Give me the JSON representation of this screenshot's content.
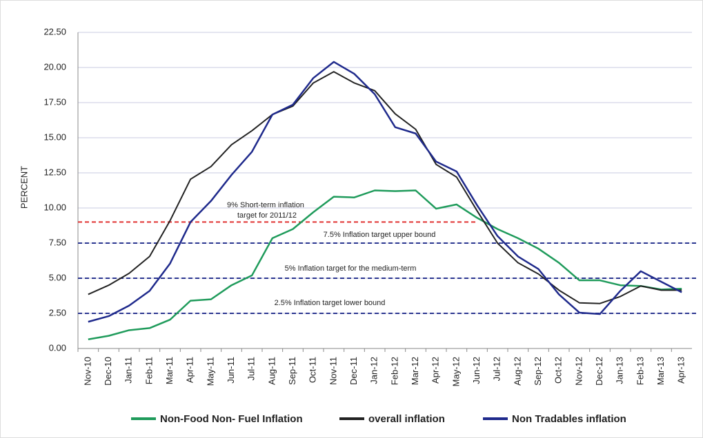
{
  "chart_data": {
    "type": "line",
    "y_label": "PERCENT",
    "categories": [
      "Nov-10",
      "Dec-10",
      "Jan-11",
      "Feb-11",
      "Mar-11",
      "Apr-11",
      "May-11",
      "Jun-11",
      "Jul-11",
      "Aug-11",
      "Sep-11",
      "Oct-11",
      "Nov-11",
      "Dec-11",
      "Jan-12",
      "Feb-12",
      "Mar-12",
      "Apr-12",
      "May-12",
      "Jun-12",
      "Jul-12",
      "Aug-12",
      "Sep-12",
      "Oct-12",
      "Nov-12",
      "Dec-12",
      "Jan-13",
      "Feb-13",
      "Mar-13",
      "Apr-13"
    ],
    "series": [
      {
        "name": "Non-Food Non- Fuel Inflation",
        "color": "#1f9b5b",
        "values": [
          0.65,
          0.9,
          1.3,
          1.45,
          2.05,
          3.4,
          3.5,
          4.5,
          5.2,
          7.85,
          8.5,
          9.7,
          10.8,
          10.75,
          11.25,
          11.2,
          11.25,
          9.95,
          10.25,
          9.3,
          8.5,
          7.85,
          7.1,
          6.1,
          4.85,
          4.85,
          4.5,
          4.45,
          4.2,
          4.25
        ]
      },
      {
        "name": "overall inflation",
        "color": "#222222",
        "values": [
          3.85,
          4.5,
          5.35,
          6.55,
          9.1,
          12.05,
          12.95,
          14.5,
          15.5,
          16.65,
          17.25,
          18.9,
          19.7,
          18.9,
          18.35,
          16.7,
          15.6,
          13.1,
          12.2,
          9.8,
          7.5,
          6.1,
          5.3,
          4.15,
          3.25,
          3.2,
          3.7,
          4.45,
          4.15,
          4.15
        ]
      },
      {
        "name": "Non Tradables inflation",
        "color": "#1f2a8c",
        "values": [
          1.9,
          2.3,
          3.05,
          4.1,
          6.05,
          9.0,
          10.5,
          12.35,
          14.0,
          16.65,
          17.35,
          19.25,
          20.4,
          19.55,
          18.1,
          15.75,
          15.3,
          13.3,
          12.6,
          10.2,
          8.0,
          6.55,
          5.65,
          3.85,
          2.55,
          2.45,
          4.1,
          5.5,
          4.75,
          4.0
        ]
      }
    ],
    "reference_lines": [
      {
        "value": 9,
        "color": "#e0302f",
        "label": [
          "9%  Short-term inflation",
          "target  for 2011/12"
        ]
      },
      {
        "value": 7.5,
        "color": "#2a3590",
        "label": [
          "7.5% Inflation target upper bound"
        ]
      },
      {
        "value": 5,
        "color": "#2a3590",
        "label": [
          "5% Inflation target for the medium-term"
        ]
      },
      {
        "value": 2.5,
        "color": "#2a3590",
        "label": [
          "2.5% Inflation target lower bound"
        ]
      }
    ],
    "ylim": [
      0,
      22.5
    ],
    "yticks": [
      {
        "value": 0,
        "label": "0.00"
      },
      {
        "value": 2.5,
        "label": "2.50"
      },
      {
        "value": 5,
        "label": "5.00"
      },
      {
        "value": 7.5,
        "label": "7.50"
      },
      {
        "value": 10,
        "label": "10.00"
      },
      {
        "value": 12.5,
        "label": "12.50"
      },
      {
        "value": 15,
        "label": "15.00"
      },
      {
        "value": 17.5,
        "label": "17.50"
      },
      {
        "value": 20,
        "label": "20.00"
      },
      {
        "value": 22.5,
        "label": "22.50"
      }
    ],
    "grid": true
  }
}
